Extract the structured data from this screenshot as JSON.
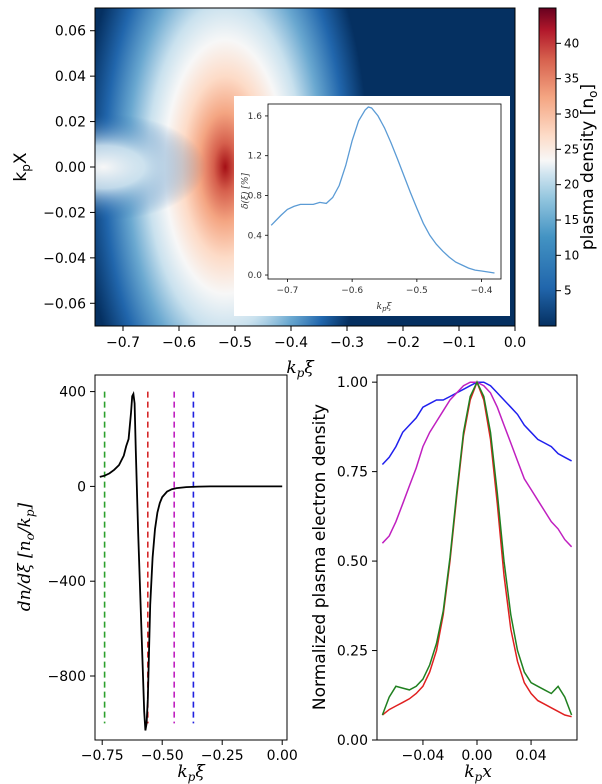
{
  "chart_data": [
    {
      "type": "heatmap",
      "xlabel": "k_pξ",
      "ylabel": "k_pX",
      "xlim": [
        -0.75,
        0.0
      ],
      "ylim": [
        -0.07,
        0.07
      ],
      "xticks": [
        "−0.7",
        "−0.6",
        "−0.5",
        "−0.4",
        "−0.3",
        "−0.2",
        "−0.1",
        "0.0"
      ],
      "yticks": [
        "0.06",
        "0.04",
        "0.02",
        "0.00",
        "−0.02",
        "−0.04",
        "−0.06"
      ],
      "colorbar": {
        "label": "plasma density [n₀]",
        "range": [
          0,
          45
        ],
        "ticks": [
          "5",
          "10",
          "15",
          "20",
          "25",
          "30",
          "35",
          "40"
        ],
        "colormap": "RdBu_r"
      },
      "peak": {
        "x": -0.6,
        "y": 0.0,
        "value": 45
      }
    },
    {
      "type": "line",
      "inset": true,
      "xlabel": "k_pξ",
      "ylabel": "δ(ξ) [%]",
      "xlim": [
        -0.73,
        -0.37
      ],
      "ylim": [
        -0.04,
        1.72
      ],
      "xticks": [
        "−0.7",
        "−0.6",
        "−0.5",
        "−0.4"
      ],
      "yticks": [
        "0.0",
        "0.4",
        "0.8",
        "1.2",
        "1.6"
      ],
      "color": "#5b9bd5",
      "x": [
        -0.725,
        -0.71,
        -0.7,
        -0.69,
        -0.68,
        -0.67,
        -0.66,
        -0.65,
        -0.64,
        -0.63,
        -0.62,
        -0.61,
        -0.6,
        -0.59,
        -0.58,
        -0.575,
        -0.57,
        -0.56,
        -0.55,
        -0.54,
        -0.53,
        -0.52,
        -0.51,
        -0.5,
        -0.49,
        -0.48,
        -0.47,
        -0.46,
        -0.45,
        -0.44,
        -0.43,
        -0.42,
        -0.41,
        -0.4,
        -0.39,
        -0.38
      ],
      "y": [
        0.5,
        0.6,
        0.66,
        0.69,
        0.71,
        0.71,
        0.71,
        0.73,
        0.72,
        0.78,
        0.9,
        1.1,
        1.35,
        1.55,
        1.66,
        1.69,
        1.68,
        1.6,
        1.48,
        1.33,
        1.17,
        1.0,
        0.83,
        0.67,
        0.52,
        0.4,
        0.31,
        0.24,
        0.18,
        0.13,
        0.1,
        0.07,
        0.05,
        0.04,
        0.03,
        0.02
      ]
    },
    {
      "type": "line",
      "xlabel": "k_pξ",
      "ylabel": "dn/dξ [n₀/k_p]",
      "xlim": [
        -0.78,
        0.02
      ],
      "ylim": [
        -1070,
        470
      ],
      "xticks": [
        "−0.75",
        "−0.50",
        "−0.25",
        "0.00"
      ],
      "yticks": [
        "400",
        "0",
        "−400",
        "−800"
      ],
      "series": [
        {
          "color": "#000000",
          "x": [
            -0.76,
            -0.74,
            -0.72,
            -0.7,
            -0.68,
            -0.66,
            -0.65,
            -0.64,
            -0.63,
            -0.625,
            -0.62,
            -0.615,
            -0.61,
            -0.6,
            -0.59,
            -0.58,
            -0.575,
            -0.57,
            -0.565,
            -0.56,
            -0.555,
            -0.55,
            -0.54,
            -0.53,
            -0.52,
            -0.51,
            -0.5,
            -0.48,
            -0.46,
            -0.44,
            -0.4,
            -0.35,
            -0.3,
            -0.25,
            -0.2,
            -0.1,
            0.0
          ],
          "y": [
            40,
            45,
            55,
            70,
            90,
            130,
            170,
            200,
            310,
            380,
            390,
            350,
            150,
            -200,
            -500,
            -800,
            -950,
            -1030,
            -1000,
            -900,
            -700,
            -500,
            -300,
            -180,
            -110,
            -70,
            -45,
            -22,
            -12,
            -7,
            -3,
            -1,
            0,
            0,
            0,
            0,
            0
          ]
        }
      ],
      "vlines": [
        {
          "x": -0.74,
          "color": "#2ca02c"
        },
        {
          "x": -0.56,
          "color": "#d62728"
        },
        {
          "x": -0.45,
          "color": "#c020c0"
        },
        {
          "x": -0.37,
          "color": "#2020e0"
        }
      ]
    },
    {
      "type": "line",
      "xlabel": "k_px",
      "ylabel": "Normalized plasma electron density",
      "xlim": [
        -0.074,
        0.074
      ],
      "ylim": [
        0.0,
        1.02
      ],
      "xticks": [
        "−0.04",
        "0.00",
        "0.04"
      ],
      "yticks": [
        "0.00",
        "0.25",
        "0.50",
        "0.75",
        "1.00"
      ],
      "x": [
        -0.07,
        -0.065,
        -0.06,
        -0.055,
        -0.05,
        -0.045,
        -0.04,
        -0.035,
        -0.03,
        -0.025,
        -0.02,
        -0.015,
        -0.01,
        -0.005,
        0.0,
        0.005,
        0.01,
        0.015,
        0.02,
        0.025,
        0.03,
        0.035,
        0.04,
        0.045,
        0.05,
        0.055,
        0.06,
        0.065,
        0.07
      ],
      "series": [
        {
          "color": "#2020ee",
          "values": [
            0.77,
            0.79,
            0.82,
            0.86,
            0.88,
            0.9,
            0.93,
            0.94,
            0.95,
            0.95,
            0.96,
            0.97,
            0.98,
            0.99,
            1.0,
            1.0,
            0.99,
            0.97,
            0.95,
            0.93,
            0.91,
            0.88,
            0.86,
            0.84,
            0.83,
            0.82,
            0.8,
            0.79,
            0.78
          ]
        },
        {
          "color": "#c020c0",
          "values": [
            0.55,
            0.57,
            0.61,
            0.66,
            0.71,
            0.76,
            0.82,
            0.86,
            0.89,
            0.92,
            0.95,
            0.97,
            0.99,
            1.0,
            1.0,
            0.99,
            0.97,
            0.93,
            0.88,
            0.83,
            0.78,
            0.73,
            0.7,
            0.67,
            0.64,
            0.61,
            0.59,
            0.56,
            0.54
          ]
        },
        {
          "color": "#e02020",
          "values": [
            0.07,
            0.085,
            0.095,
            0.105,
            0.115,
            0.13,
            0.15,
            0.19,
            0.25,
            0.35,
            0.5,
            0.68,
            0.85,
            0.95,
            1.0,
            0.95,
            0.84,
            0.66,
            0.46,
            0.31,
            0.22,
            0.16,
            0.13,
            0.11,
            0.1,
            0.09,
            0.08,
            0.07,
            0.065
          ]
        },
        {
          "color": "#208020",
          "values": [
            0.07,
            0.12,
            0.15,
            0.145,
            0.14,
            0.15,
            0.17,
            0.21,
            0.27,
            0.36,
            0.51,
            0.69,
            0.86,
            0.96,
            1.0,
            0.96,
            0.86,
            0.69,
            0.5,
            0.35,
            0.25,
            0.19,
            0.16,
            0.15,
            0.14,
            0.13,
            0.15,
            0.12,
            0.07
          ]
        }
      ]
    }
  ]
}
